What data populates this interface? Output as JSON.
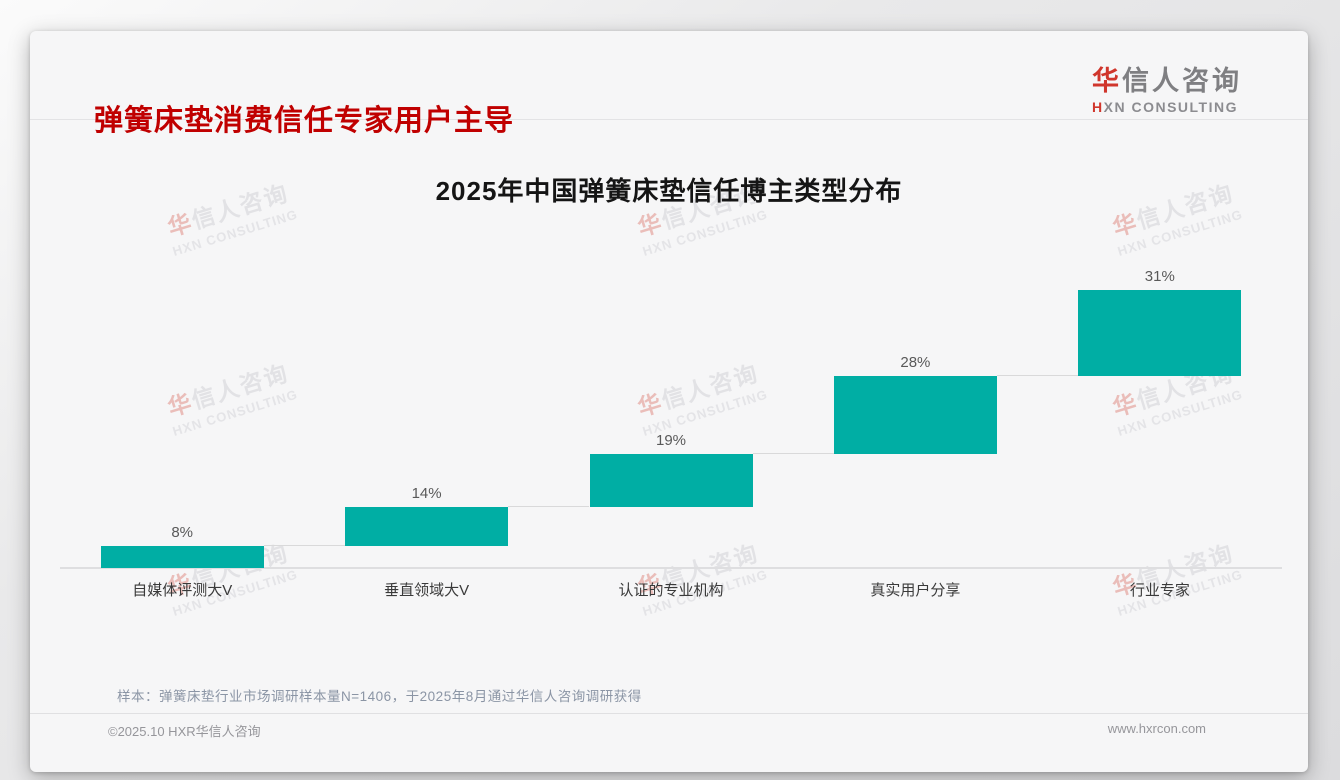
{
  "header": {
    "title": "弹簧床垫消费信任专家用户主导",
    "title_color": "#c00000"
  },
  "logo": {
    "cn_accent": "华",
    "cn_rest": "信人咨询",
    "en_accent": "H",
    "en_rest": "XN CONSULTING",
    "accent_color": "#d0362c"
  },
  "watermark": {
    "cn_accent": "华",
    "cn_rest": "信人咨询",
    "en": "HXN CONSULTING"
  },
  "chart_data": {
    "type": "bar",
    "subtype": "stepped-cumulative-waterfall",
    "title": "2025年中国弹簧床垫信任博主类型分布",
    "categories": [
      "自媒体评测大V",
      "垂直领域大V",
      "认证的专业机构",
      "真实用户分享",
      "行业专家"
    ],
    "values": [
      8,
      14,
      19,
      28,
      31
    ],
    "labels": [
      "8%",
      "14%",
      "19%",
      "28%",
      "31%"
    ],
    "cumulative_tops": [
      8,
      22,
      41,
      69,
      100
    ],
    "unit": "%",
    "ylim": [
      0,
      100
    ],
    "bar_color": "#00aea4",
    "connector_color": "#d9d9da",
    "label_color": "#595959",
    "grid": false,
    "legend": "none"
  },
  "note": {
    "text": "样本：弹簧床垫行业市场调研样本量N=1406，于2025年8月通过华信人咨询调研获得"
  },
  "footer": {
    "left": "©2025.10 HXR华信人咨询",
    "right": "www.hxrcon.com"
  }
}
